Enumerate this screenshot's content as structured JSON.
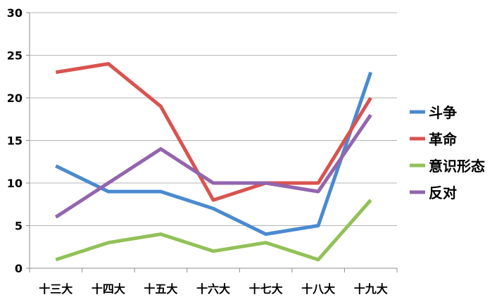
{
  "chart_data": {
    "type": "line",
    "categories": [
      "十三大",
      "十四大",
      "十五大",
      "十六大",
      "十七大",
      "十八大",
      "十九大"
    ],
    "ylim": [
      0,
      30
    ],
    "yticks": [
      0,
      5,
      10,
      15,
      20,
      25,
      30
    ],
    "grid": "horizontal",
    "legend_position": "right",
    "series": [
      {
        "name": "斗争",
        "color": "#4a8ad0",
        "values": [
          12,
          9,
          9,
          7,
          4,
          5,
          23
        ]
      },
      {
        "name": "革命",
        "color": "#d9534f",
        "values": [
          23,
          24,
          19,
          8,
          10,
          10,
          20
        ]
      },
      {
        "name": "意识形态",
        "color": "#92c158",
        "values": [
          1,
          3,
          4,
          2,
          3,
          1,
          8
        ]
      },
      {
        "name": "反对",
        "color": "#9265ae",
        "values": [
          6,
          10,
          14,
          10,
          10,
          9,
          18
        ]
      }
    ]
  }
}
